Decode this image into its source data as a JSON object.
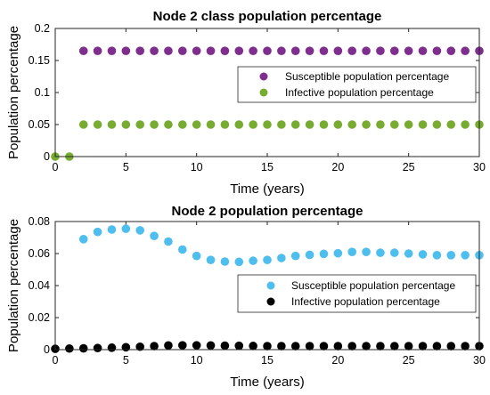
{
  "colors": {
    "purple": "#7E2F8E",
    "green": "#77AC30",
    "lightblue": "#4DBEEE",
    "black": "#000000"
  },
  "chart_data": [
    {
      "type": "scatter",
      "title": "Node 2 class population percentage",
      "xlabel": "Time (years)",
      "ylabel": "Population percentage",
      "xlim": [
        0,
        30
      ],
      "ylim": [
        0,
        0.2
      ],
      "xticks": [
        0,
        5,
        10,
        15,
        20,
        25,
        30
      ],
      "yticks": [
        0,
        0.05,
        0.1,
        0.15,
        0.2
      ],
      "xtick_labels": [
        "0",
        "5",
        "10",
        "15",
        "20",
        "25",
        "30"
      ],
      "ytick_labels": [
        "0",
        "0.05",
        "0.1",
        "0.15",
        "0.2"
      ],
      "legend_position": "right",
      "series": [
        {
          "name": "Susceptible population percentage",
          "color": "#7E2F8E",
          "x": [
            2,
            3,
            4,
            5,
            6,
            7,
            8,
            9,
            10,
            11,
            12,
            13,
            14,
            15,
            16,
            17,
            18,
            19,
            20,
            21,
            22,
            23,
            24,
            25,
            26,
            27,
            28,
            29,
            30
          ],
          "y": [
            0.165,
            0.165,
            0.165,
            0.165,
            0.165,
            0.165,
            0.165,
            0.165,
            0.165,
            0.165,
            0.165,
            0.165,
            0.165,
            0.165,
            0.165,
            0.165,
            0.165,
            0.165,
            0.165,
            0.165,
            0.165,
            0.165,
            0.165,
            0.165,
            0.165,
            0.165,
            0.165,
            0.165,
            0.165
          ]
        },
        {
          "name": "Infective population percentage",
          "color": "#77AC30",
          "x": [
            0,
            1,
            2,
            3,
            4,
            5,
            6,
            7,
            8,
            9,
            10,
            11,
            12,
            13,
            14,
            15,
            16,
            17,
            18,
            19,
            20,
            21,
            22,
            23,
            24,
            25,
            26,
            27,
            28,
            29,
            30
          ],
          "y": [
            0,
            0,
            0.05,
            0.05,
            0.05,
            0.05,
            0.05,
            0.05,
            0.05,
            0.05,
            0.05,
            0.05,
            0.05,
            0.05,
            0.05,
            0.05,
            0.05,
            0.05,
            0.05,
            0.05,
            0.05,
            0.05,
            0.05,
            0.05,
            0.05,
            0.05,
            0.05,
            0.05,
            0.05,
            0.05,
            0.05
          ]
        }
      ]
    },
    {
      "type": "scatter",
      "title": "Node 2 population percentage",
      "xlabel": "Time (years)",
      "ylabel": "Population percentage",
      "xlim": [
        0,
        30
      ],
      "ylim": [
        0,
        0.08
      ],
      "xticks": [
        0,
        5,
        10,
        15,
        20,
        25,
        30
      ],
      "yticks": [
        0,
        0.02,
        0.04,
        0.06,
        0.08
      ],
      "xtick_labels": [
        "0",
        "5",
        "10",
        "15",
        "20",
        "25",
        "30"
      ],
      "ytick_labels": [
        "0",
        "0.02",
        "0.04",
        "0.06",
        "0.08"
      ],
      "legend_position": "right",
      "series": [
        {
          "name": "Susceptible population percentage",
          "color": "#4DBEEE",
          "x": [
            2,
            3,
            4,
            5,
            6,
            7,
            8,
            9,
            10,
            11,
            12,
            13,
            14,
            15,
            16,
            17,
            18,
            19,
            20,
            21,
            22,
            23,
            24,
            25,
            26,
            27,
            28,
            29,
            30
          ],
          "y": [
            0.069,
            0.0735,
            0.075,
            0.0755,
            0.0745,
            0.071,
            0.0675,
            0.0625,
            0.0585,
            0.056,
            0.055,
            0.0548,
            0.0555,
            0.056,
            0.0572,
            0.0585,
            0.0592,
            0.0598,
            0.0602,
            0.061,
            0.061,
            0.0605,
            0.0605,
            0.06,
            0.0595,
            0.059,
            0.059,
            0.059,
            0.059
          ]
        },
        {
          "name": "Infective population percentage",
          "color": "#000000",
          "x": [
            0,
            1,
            2,
            3,
            4,
            5,
            6,
            7,
            8,
            9,
            10,
            11,
            12,
            13,
            14,
            15,
            16,
            17,
            18,
            19,
            20,
            21,
            22,
            23,
            24,
            25,
            26,
            27,
            28,
            29,
            30
          ],
          "y": [
            0.0005,
            0.0007,
            0.0008,
            0.001,
            0.0012,
            0.0015,
            0.0018,
            0.0022,
            0.0026,
            0.0027,
            0.0027,
            0.0026,
            0.0025,
            0.0024,
            0.0023,
            0.0022,
            0.0022,
            0.0022,
            0.0022,
            0.0022,
            0.0022,
            0.0022,
            0.0022,
            0.0022,
            0.0022,
            0.0022,
            0.0022,
            0.0022,
            0.0022,
            0.0022,
            0.0022
          ]
        }
      ]
    }
  ]
}
